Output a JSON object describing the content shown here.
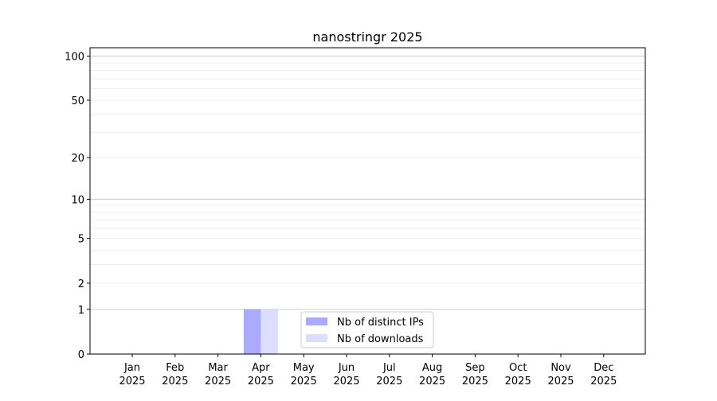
{
  "chart_data": {
    "type": "bar",
    "title": "nanostringr 2025",
    "xlabel": "",
    "ylabel": "",
    "y_scale": "log(1+y)",
    "ylim": [
      0,
      114
    ],
    "y_ticks": [
      0,
      1,
      2,
      5,
      10,
      20,
      50,
      100
    ],
    "y_tick_labels": [
      "0",
      "1",
      "2",
      "5",
      "10",
      "20",
      "50",
      "100"
    ],
    "grid": true,
    "categories": [
      {
        "month": "Jan",
        "year": "2025"
      },
      {
        "month": "Feb",
        "year": "2025"
      },
      {
        "month": "Mar",
        "year": "2025"
      },
      {
        "month": "Apr",
        "year": "2025"
      },
      {
        "month": "May",
        "year": "2025"
      },
      {
        "month": "Jun",
        "year": "2025"
      },
      {
        "month": "Jul",
        "year": "2025"
      },
      {
        "month": "Aug",
        "year": "2025"
      },
      {
        "month": "Sep",
        "year": "2025"
      },
      {
        "month": "Oct",
        "year": "2025"
      },
      {
        "month": "Nov",
        "year": "2025"
      },
      {
        "month": "Dec",
        "year": "2025"
      }
    ],
    "series": [
      {
        "name": "Nb of distinct IPs",
        "color": "#aaaaff",
        "values": [
          0,
          0,
          0,
          1,
          0,
          0,
          0,
          0,
          0,
          0,
          0,
          0
        ]
      },
      {
        "name": "Nb of downloads",
        "color": "#ddddff",
        "values": [
          0,
          0,
          0,
          1,
          0,
          0,
          0,
          0,
          0,
          0,
          0,
          0
        ]
      }
    ],
    "legend_position": "lower center"
  }
}
